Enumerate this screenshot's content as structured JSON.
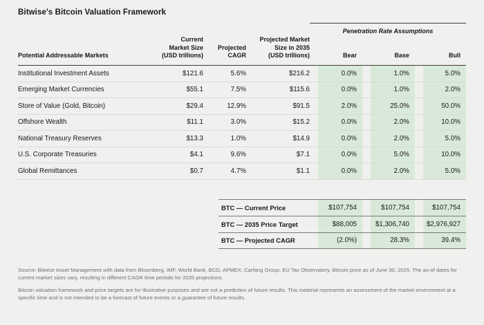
{
  "title": "Bitwise's Bitcoin Valuation Framework",
  "chart_data": {
    "type": "table",
    "penetration_group_header": "Penetration Rate Assumptions",
    "columns": {
      "markets": "Potential Addressable Markets",
      "current_size": "Current\nMarket Size\n(USD trillions)",
      "cagr": "Projected\nCAGR",
      "projected_size": "Projected Market\nSize in 2035\n(USD trillions)",
      "bear": "Bear",
      "base": "Base",
      "bull": "Bull"
    },
    "rows": [
      {
        "market": "Institutional Investment Assets",
        "current_size": "$121.6",
        "cagr": "5.6%",
        "projected_size": "$216.2",
        "bear": "0.0%",
        "base": "1.0%",
        "bull": "5.0%"
      },
      {
        "market": "Emerging Market Currencies",
        "current_size": "$55.1",
        "cagr": "7.5%",
        "projected_size": "$115.6",
        "bear": "0.0%",
        "base": "1.0%",
        "bull": "2.0%"
      },
      {
        "market": "Store of Value (Gold, Bitcoin)",
        "current_size": "$29.4",
        "cagr": "12.9%",
        "projected_size": "$91.5",
        "bear": "2.0%",
        "base": "25.0%",
        "bull": "50.0%"
      },
      {
        "market": "Offshore Wealth",
        "current_size": "$11.1",
        "cagr": "3.0%",
        "projected_size": "$15.2",
        "bear": "0.0%",
        "base": "2.0%",
        "bull": "10.0%"
      },
      {
        "market": "National Treasury Reserves",
        "current_size": "$13.3",
        "cagr": "1.0%",
        "projected_size": "$14.9",
        "bear": "0.0%",
        "base": "2.0%",
        "bull": "5.0%"
      },
      {
        "market": "U.S. Corporate Treasuries",
        "current_size": "$4.1",
        "cagr": "9.6%",
        "projected_size": "$7.1",
        "bear": "0.0%",
        "base": "5.0%",
        "bull": "10.0%"
      },
      {
        "market": "Global Remittances",
        "current_size": "$0.7",
        "cagr": "4.7%",
        "projected_size": "$1.1",
        "bear": "0.0%",
        "base": "2.0%",
        "bull": "5.0%"
      }
    ],
    "summary_rows": [
      {
        "label": "BTC — Current Price",
        "bear": "$107,754",
        "base": "$107,754",
        "bull": "$107,754"
      },
      {
        "label": "BTC — 2035 Price Target",
        "bear": "$88,005",
        "base": "$1,306,740",
        "bull": "$2,976,927"
      },
      {
        "label": "BTC — Projected CAGR",
        "bear": "(2.0%)",
        "base": "28.3%",
        "bull": "39.4%"
      }
    ]
  },
  "footnotes": [
    "Source: Bitwise Asset Management with data from Bloomberg, IMF, World Bank, BCG, APMEX, Carfang Group, EU Tax Observatory. Bitcoin price as of June 30, 2025. The as-of dates for current market sizes vary, resulting in different CAGR time periods for 2035 projections.",
    "Bitcoin valuation framework and price targets are for illustrative purposes and are not a prediction of future results. This material represents an assessment of the market environment at a specific time and is not intended to be a forecast of future events or a guarantee of future results."
  ],
  "colors": {
    "background": "#f0f0ee",
    "highlight_green": "#d9e9d9",
    "rule_dark": "#3a3a3a",
    "rule_light": "#dadad8",
    "muted_text": "#6e6e6e"
  }
}
